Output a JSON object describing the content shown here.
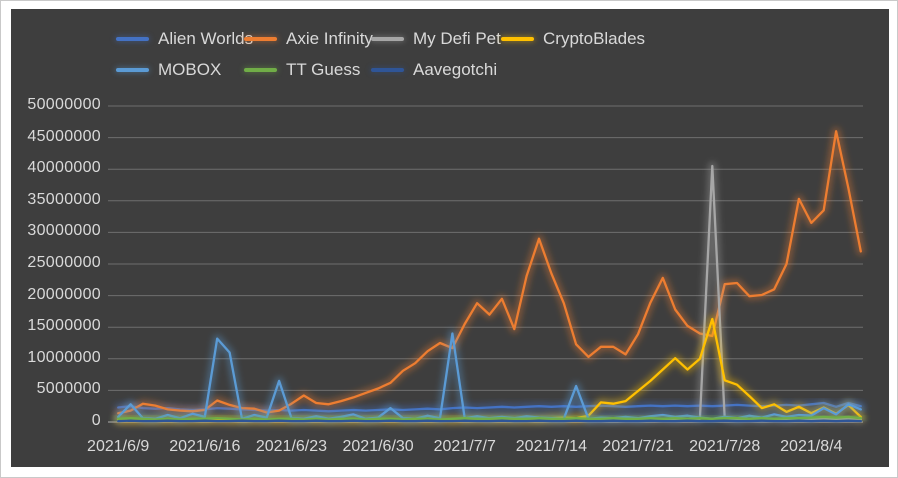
{
  "style": {
    "page_background": "#ffffff",
    "panel_background": "#3e3e3e",
    "text_color": "#d9d9d9",
    "gridline_color": "#6f6f6f",
    "axis_line_color": "#8a8a8a"
  },
  "y_axis": {
    "tick_labels_top_to_bottom": [
      "50000000",
      "45000000",
      "40000000",
      "35000000",
      "30000000",
      "25000000",
      "20000000",
      "15000000",
      "10000000",
      "5000000",
      "0"
    ]
  },
  "chart_data": {
    "type": "line",
    "title": "",
    "xlabel": "",
    "ylabel": "",
    "ylim": [
      0,
      50000000
    ],
    "y_tick_step": 5000000,
    "grid": true,
    "legend_position": "top-left, two rows",
    "x_tick_labels": [
      "2021/6/9",
      "2021/6/16",
      "2021/6/23",
      "2021/6/30",
      "2021/7/7",
      "2021/7/14",
      "2021/7/21",
      "2021/7/28",
      "2021/8/4"
    ],
    "x_tick_every": 7,
    "x": [
      "2021/6/9",
      "2021/6/10",
      "2021/6/11",
      "2021/6/12",
      "2021/6/13",
      "2021/6/14",
      "2021/6/15",
      "2021/6/16",
      "2021/6/17",
      "2021/6/18",
      "2021/6/19",
      "2021/6/20",
      "2021/6/21",
      "2021/6/22",
      "2021/6/23",
      "2021/6/24",
      "2021/6/25",
      "2021/6/26",
      "2021/6/27",
      "2021/6/28",
      "2021/6/29",
      "2021/6/30",
      "2021/7/1",
      "2021/7/2",
      "2021/7/3",
      "2021/7/4",
      "2021/7/5",
      "2021/7/6",
      "2021/7/7",
      "2021/7/8",
      "2021/7/9",
      "2021/7/10",
      "2021/7/11",
      "2021/7/12",
      "2021/7/13",
      "2021/7/14",
      "2021/7/15",
      "2021/7/16",
      "2021/7/17",
      "2021/7/18",
      "2021/7/19",
      "2021/7/20",
      "2021/7/21",
      "2021/7/22",
      "2021/7/23",
      "2021/7/24",
      "2021/7/25",
      "2021/7/26",
      "2021/7/27",
      "2021/7/28",
      "2021/7/29",
      "2021/7/30",
      "2021/7/31",
      "2021/8/1",
      "2021/8/2",
      "2021/8/3",
      "2021/8/4",
      "2021/8/5",
      "2021/8/6",
      "2021/8/7",
      "2021/8/8"
    ],
    "series": [
      {
        "name": "Alien Worlds",
        "color": "#4472C4",
        "values": [
          2300000,
          2500000,
          2200000,
          2100000,
          2200000,
          2000000,
          1900000,
          2000000,
          2200000,
          2100000,
          2000000,
          1900000,
          1800000,
          1900000,
          1800000,
          1900000,
          1800000,
          1700000,
          1800000,
          1900000,
          1800000,
          1900000,
          2000000,
          1900000,
          2000000,
          2100000,
          2000000,
          2200000,
          2300000,
          2200000,
          2300000,
          2400000,
          2300000,
          2400000,
          2500000,
          2400000,
          2500000,
          2400000,
          2500000,
          2600000,
          2500000,
          2400000,
          2500000,
          2600000,
          2500000,
          2600000,
          2500000,
          2600000,
          2500000,
          2600000,
          2700000,
          2600000,
          2500000,
          2600000,
          2700000,
          2600000,
          2800000,
          3000000,
          2400000,
          3000000,
          2500000
        ]
      },
      {
        "name": "Axie Infinity",
        "color": "#ED7D31",
        "values": [
          1400000,
          1800000,
          2900000,
          2600000,
          2000000,
          1800000,
          1700000,
          1900000,
          3400000,
          2700000,
          2200000,
          2100000,
          1500000,
          1800000,
          2900000,
          4200000,
          3000000,
          2800000,
          3300000,
          3900000,
          4600000,
          5300000,
          6200000,
          8100000,
          9300000,
          11200000,
          12500000,
          11700000,
          15500000,
          18800000,
          17000000,
          19500000,
          14700000,
          23100000,
          29000000,
          23500000,
          18800000,
          12300000,
          10300000,
          11900000,
          11900000,
          10700000,
          13900000,
          18900000,
          22800000,
          17800000,
          15200000,
          14000000,
          13600000,
          21800000,
          22000000,
          19900000,
          20100000,
          21000000,
          25000000,
          35300000,
          31500000,
          33500000,
          46000000,
          37000000,
          27000000
        ]
      },
      {
        "name": "My Defi Pet",
        "color": "#A6A6A6",
        "values": [
          300000,
          300000,
          300000,
          300000,
          300000,
          300000,
          300000,
          300000,
          300000,
          300000,
          300000,
          300000,
          300000,
          300000,
          300000,
          300000,
          300000,
          300000,
          300000,
          300000,
          300000,
          300000,
          300000,
          300000,
          300000,
          300000,
          300000,
          300000,
          300000,
          300000,
          300000,
          300000,
          300000,
          300000,
          300000,
          300000,
          300000,
          300000,
          300000,
          300000,
          300000,
          300000,
          300000,
          300000,
          400000,
          300000,
          400000,
          500000,
          40500000,
          600000,
          400000,
          500000,
          400000,
          400000,
          300000,
          400000,
          400000,
          500000,
          400000,
          500000,
          400000
        ]
      },
      {
        "name": "CryptoBlades",
        "color": "#FFC000",
        "values": [
          300000,
          300000,
          300000,
          300000,
          300000,
          300000,
          300000,
          300000,
          400000,
          300000,
          300000,
          300000,
          300000,
          300000,
          300000,
          400000,
          300000,
          300000,
          300000,
          300000,
          300000,
          400000,
          300000,
          300000,
          400000,
          300000,
          400000,
          300000,
          400000,
          400000,
          400000,
          400000,
          400000,
          400000,
          400000,
          600000,
          700000,
          600000,
          1000000,
          3100000,
          2900000,
          3300000,
          4900000,
          6500000,
          8300000,
          10100000,
          8300000,
          10000000,
          16300000,
          6600000,
          5900000,
          4100000,
          2200000,
          2800000,
          1600000,
          2400000,
          1400000,
          2300000,
          1300000,
          2700000,
          800000
        ]
      },
      {
        "name": "MOBOX",
        "color": "#5B9BD5",
        "values": [
          800000,
          2800000,
          600000,
          500000,
          1100000,
          600000,
          1300000,
          800000,
          13200000,
          11000000,
          500000,
          1100000,
          700000,
          6500000,
          600000,
          500000,
          900000,
          500000,
          800000,
          1200000,
          500000,
          700000,
          2200000,
          600000,
          500000,
          1000000,
          600000,
          14000000,
          600000,
          900000,
          600000,
          800000,
          600000,
          900000,
          700000,
          600000,
          500000,
          5700000,
          500000,
          700000,
          600000,
          800000,
          600000,
          900000,
          1100000,
          800000,
          1000000,
          700000,
          500000,
          800000,
          600000,
          1000000,
          700000,
          1200000,
          800000,
          1100000,
          1000000,
          2200000,
          1200000,
          2800000,
          2000000
        ]
      },
      {
        "name": "TT Guess",
        "color": "#70AD47",
        "values": [
          500000,
          600000,
          500000,
          400000,
          500000,
          400000,
          500000,
          500000,
          600000,
          500000,
          400000,
          500000,
          400000,
          500000,
          500000,
          400000,
          500000,
          400000,
          500000,
          500000,
          400000,
          500000,
          500000,
          400000,
          500000,
          500000,
          400000,
          500000,
          600000,
          500000,
          500000,
          600000,
          500000,
          500000,
          600000,
          500000,
          500000,
          600000,
          500000,
          500000,
          600000,
          500000,
          500000,
          600000,
          500000,
          600000,
          500000,
          600000,
          500000,
          600000,
          600000,
          500000,
          600000,
          500000,
          600000,
          600000,
          700000,
          800000,
          700000,
          800000,
          600000
        ]
      },
      {
        "name": "Aavegotchi",
        "color": "#2F5597",
        "values": [
          150000,
          200000,
          150000,
          150000,
          200000,
          150000,
          150000,
          200000,
          150000,
          150000,
          200000,
          150000,
          150000,
          200000,
          150000,
          150000,
          200000,
          150000,
          150000,
          200000,
          150000,
          150000,
          200000,
          150000,
          150000,
          200000,
          150000,
          150000,
          200000,
          150000,
          150000,
          200000,
          150000,
          150000,
          200000,
          150000,
          150000,
          200000,
          150000,
          150000,
          200000,
          150000,
          150000,
          200000,
          150000,
          150000,
          200000,
          150000,
          150000,
          200000,
          150000,
          150000,
          200000,
          150000,
          150000,
          200000,
          150000,
          200000,
          150000,
          200000,
          150000
        ]
      }
    ]
  }
}
